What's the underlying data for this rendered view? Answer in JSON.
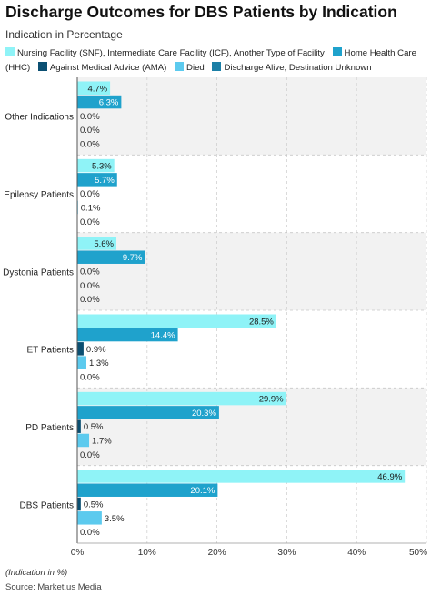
{
  "header": {
    "title": "Discharge Outcomes for DBS Patients by Indication",
    "subtitle": "Indication in Percentage"
  },
  "footer": {
    "note": "(Indication in %)",
    "source": "Source: Market.us Media"
  },
  "chart_data": {
    "type": "bar",
    "orientation": "horizontal",
    "grouped": true,
    "categories": [
      "Other Indications",
      "Epilepsy Patients",
      "Dystonia Patients",
      "ET Patients",
      "PD Patients",
      "DBS Patients"
    ],
    "series": [
      {
        "name": "Nursing Facility (SNF), Intermediate Care Facility (ICF), Another Type of Facility",
        "color": "#8ff3f7",
        "values": [
          4.7,
          5.3,
          5.6,
          28.5,
          29.9,
          46.9
        ]
      },
      {
        "name": "Home Health Care (HHC)",
        "color": "#1fa2cc",
        "values": [
          6.3,
          5.7,
          9.7,
          14.4,
          20.3,
          20.1
        ]
      },
      {
        "name": "Against Medical Advice (AMA)",
        "color": "#0b4f72",
        "values": [
          0.0,
          0.0,
          0.0,
          0.9,
          0.5,
          0.5
        ]
      },
      {
        "name": "Died",
        "color": "#5ccaee",
        "values": [
          0.0,
          0.1,
          0.0,
          1.3,
          1.7,
          3.5
        ]
      },
      {
        "name": "Discharge Alive, Destination Unknown",
        "color": "#1b7fa6",
        "values": [
          0.0,
          0.0,
          0.0,
          0.0,
          0.0,
          0.0
        ]
      }
    ],
    "value_suffix": "%",
    "xlim": [
      0,
      50
    ],
    "xticks": [
      0,
      10,
      20,
      30,
      40,
      50
    ],
    "xtick_labels": [
      "0%",
      "10%",
      "20%",
      "30%",
      "40%",
      "50%"
    ],
    "grid": true,
    "legend_position": "top",
    "band_colors": [
      "#f2f2f2",
      "#ffffff"
    ]
  }
}
